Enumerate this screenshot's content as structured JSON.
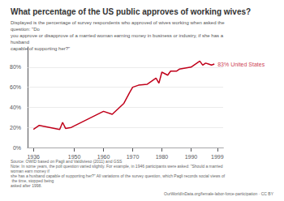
{
  "chart_data": {
    "type": "line",
    "title": "What percentage of the US public approves of working wives?",
    "subtitle": "Displayed is the percentage of survey respondents who approved of wives working when asked the question: \"Do\nyou approve or disapprove of a married woman earning money in business or industry, if she has a husband\ncapable of supporting her?\"",
    "x": [
      1936,
      1938,
      1945,
      1946,
      1947,
      1949,
      1960,
      1963,
      1967,
      1969,
      1970,
      1972,
      1975,
      1976,
      1977,
      1978,
      1979,
      1980,
      1982,
      1983,
      1985,
      1986,
      1988,
      1990,
      1993,
      1994,
      1995,
      1996,
      1997,
      1998
    ],
    "values": [
      18,
      22,
      18,
      25,
      19,
      20,
      36,
      33,
      44,
      55,
      60,
      62,
      63,
      65,
      67,
      69,
      64,
      75,
      72,
      76,
      76,
      78,
      79,
      80,
      86,
      82,
      84,
      83,
      82,
      83
    ],
    "color": "#C0001A",
    "xlim": [
      1934,
      2001
    ],
    "ylim": [
      0,
      100
    ],
    "xticks": [
      1936,
      1950,
      1960,
      1970,
      1980,
      1990,
      1999
    ],
    "yticks": [
      {
        "value": 0,
        "label": "0%"
      },
      {
        "value": 20,
        "label": "20%"
      },
      {
        "value": 40,
        "label": "40%"
      },
      {
        "value": 60,
        "label": "60%"
      },
      {
        "value": 80,
        "label": "80%"
      }
    ],
    "grid": true,
    "annotations": [
      {
        "text": "83% United States",
        "x": 1998,
        "y": 83
      }
    ],
    "source": "Source: OWID based on Pagli and Valdivieso (2011) and GSS\nNote: In some years, the poll question varied slightly. For example, in 1946 participants were asked: \"Should a married woman earn money if\nshe has a husband capable of supporting her?\" All variations of the survey question, which Pagli records social views of the time, stopped being\nasked after 1998.",
    "credit": "OurWorldInData.org/female-labor-force-participation · CC BY"
  }
}
